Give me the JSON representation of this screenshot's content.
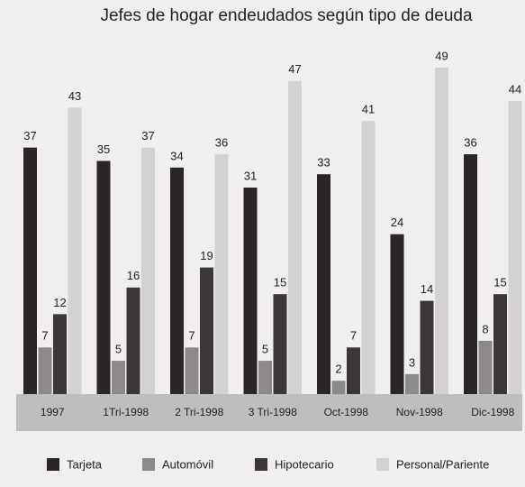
{
  "chart_data": {
    "type": "bar",
    "title": "Jefes de hogar endeudados según tipo de deuda",
    "categories": [
      "1997",
      "1Tri-1998",
      "2 Tri-1998",
      "3 Tri-1998",
      "Oct-1998",
      "Nov-1998",
      "Dic-1998"
    ],
    "series": [
      {
        "name": "Tarjeta",
        "color": "#2b2626",
        "values": [
          37,
          35,
          34,
          31,
          33,
          24,
          36
        ]
      },
      {
        "name": "Automóvil",
        "color": "#8c8a89",
        "values": [
          7,
          5,
          7,
          5,
          2,
          3,
          8
        ]
      },
      {
        "name": "Hipotecario",
        "color": "#3c3636",
        "values": [
          12,
          16,
          19,
          15,
          7,
          14,
          15
        ]
      },
      {
        "name": "Personal/Pariente",
        "color": "#d3d2d1",
        "values": [
          43,
          37,
          36,
          47,
          41,
          49,
          44
        ]
      }
    ]
  }
}
